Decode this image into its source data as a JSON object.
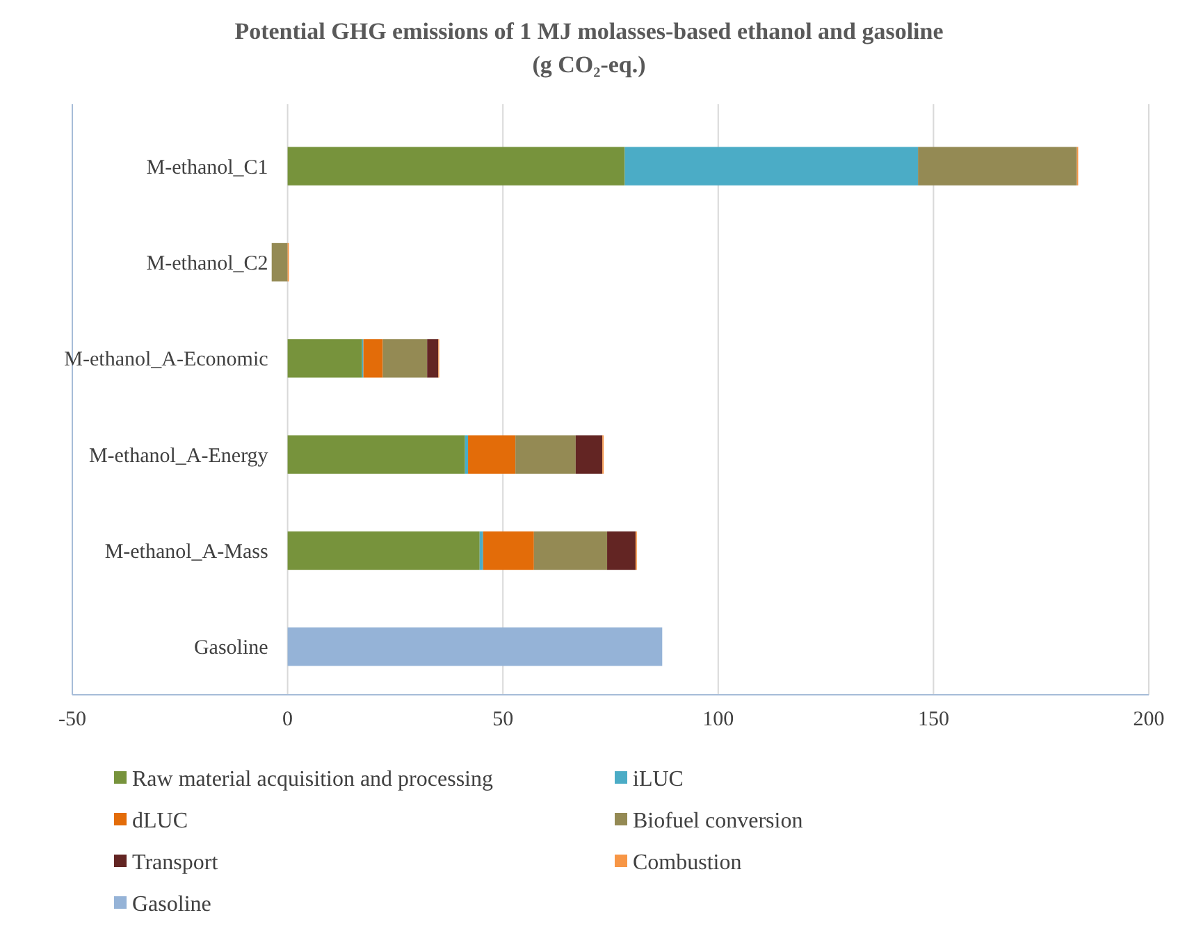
{
  "chart_data": {
    "type": "bar",
    "orientation": "horizontal",
    "stacked": true,
    "title": "Potential GHG emissions of 1 MJ molasses-based ethanol and gasoline",
    "subtitle": "(g CO₂-eq.)",
    "categories": [
      "M-ethanol_C1",
      "M-ethanol_C2",
      "M-ethanol_A-Economic",
      "M-ethanol_A-Energy",
      "M-ethanol_A-Mass",
      "Gasoline"
    ],
    "series": [
      {
        "name": "Raw material acquisition and processing",
        "color": "#77933c",
        "values": [
          78.3,
          null,
          17.3,
          41.2,
          44.6,
          null
        ]
      },
      {
        "name": "iLUC",
        "color": "#4bacc6",
        "values": [
          68.1,
          null,
          0.3,
          0.7,
          0.8,
          null
        ]
      },
      {
        "name": "dLUC",
        "color": "#e36c09",
        "values": [
          null,
          null,
          4.5,
          11.0,
          11.8,
          null
        ]
      },
      {
        "name": "Biofuel conversion",
        "color": "#948a54",
        "values": [
          36.9,
          -3.7,
          10.3,
          14.0,
          17.0,
          null
        ]
      },
      {
        "name": "Transport",
        "color": "#632523",
        "values": [
          null,
          null,
          2.6,
          6.2,
          6.6,
          null
        ]
      },
      {
        "name": "Combustion",
        "color": "#f79646",
        "values": [
          0.3,
          0.3,
          0.2,
          0.3,
          0.3,
          null
        ]
      },
      {
        "name": "Gasoline",
        "color": "#95b3d7",
        "values": [
          null,
          null,
          null,
          null,
          null,
          87
        ]
      }
    ],
    "xlim": [
      -50,
      200
    ],
    "xticks": [
      -50,
      0,
      50,
      100,
      150,
      200
    ],
    "grid": "x",
    "legend": "bottom"
  }
}
